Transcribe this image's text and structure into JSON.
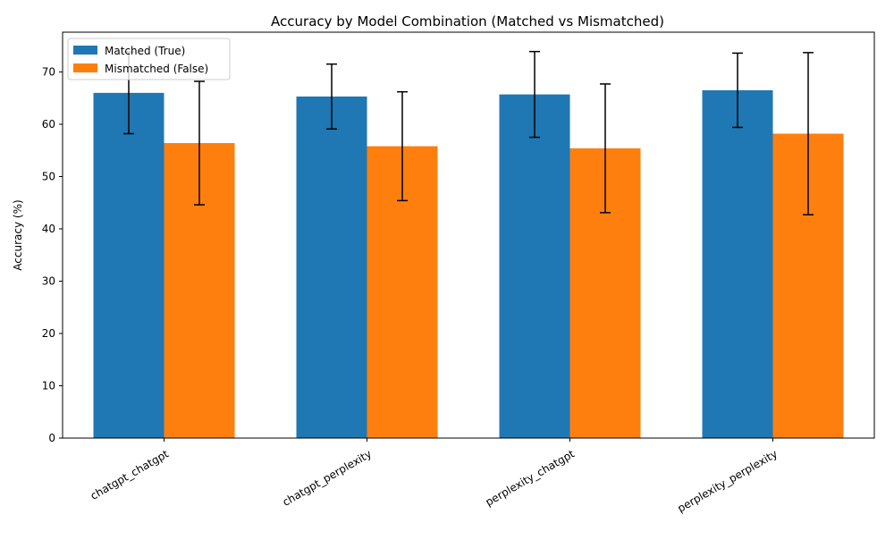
{
  "chart_data": {
    "type": "bar",
    "title": "Accuracy by Model Combination (Matched vs Mismatched)",
    "xlabel": "",
    "ylabel": "Accuracy (%)",
    "categories": [
      "chatgpt_chatgpt",
      "chatgpt_perplexity",
      "perplexity_chatgpt",
      "perplexity_perplexity"
    ],
    "series": [
      {
        "name": "Matched (True)",
        "color": "#1f77b4",
        "values": [
          66.0,
          65.3,
          65.7,
          66.5
        ],
        "error": [
          7.8,
          6.2,
          8.2,
          7.1
        ]
      },
      {
        "name": "Mismatched (False)",
        "color": "#ff7f0e",
        "values": [
          56.4,
          55.8,
          55.4,
          58.2
        ],
        "error": [
          11.8,
          10.4,
          12.3,
          15.5
        ]
      }
    ],
    "ylim": [
      0,
      77.6
    ],
    "yticks": [
      0,
      10,
      20,
      30,
      40,
      50,
      60,
      70
    ],
    "legend_position": "top-left",
    "grid": false
  }
}
